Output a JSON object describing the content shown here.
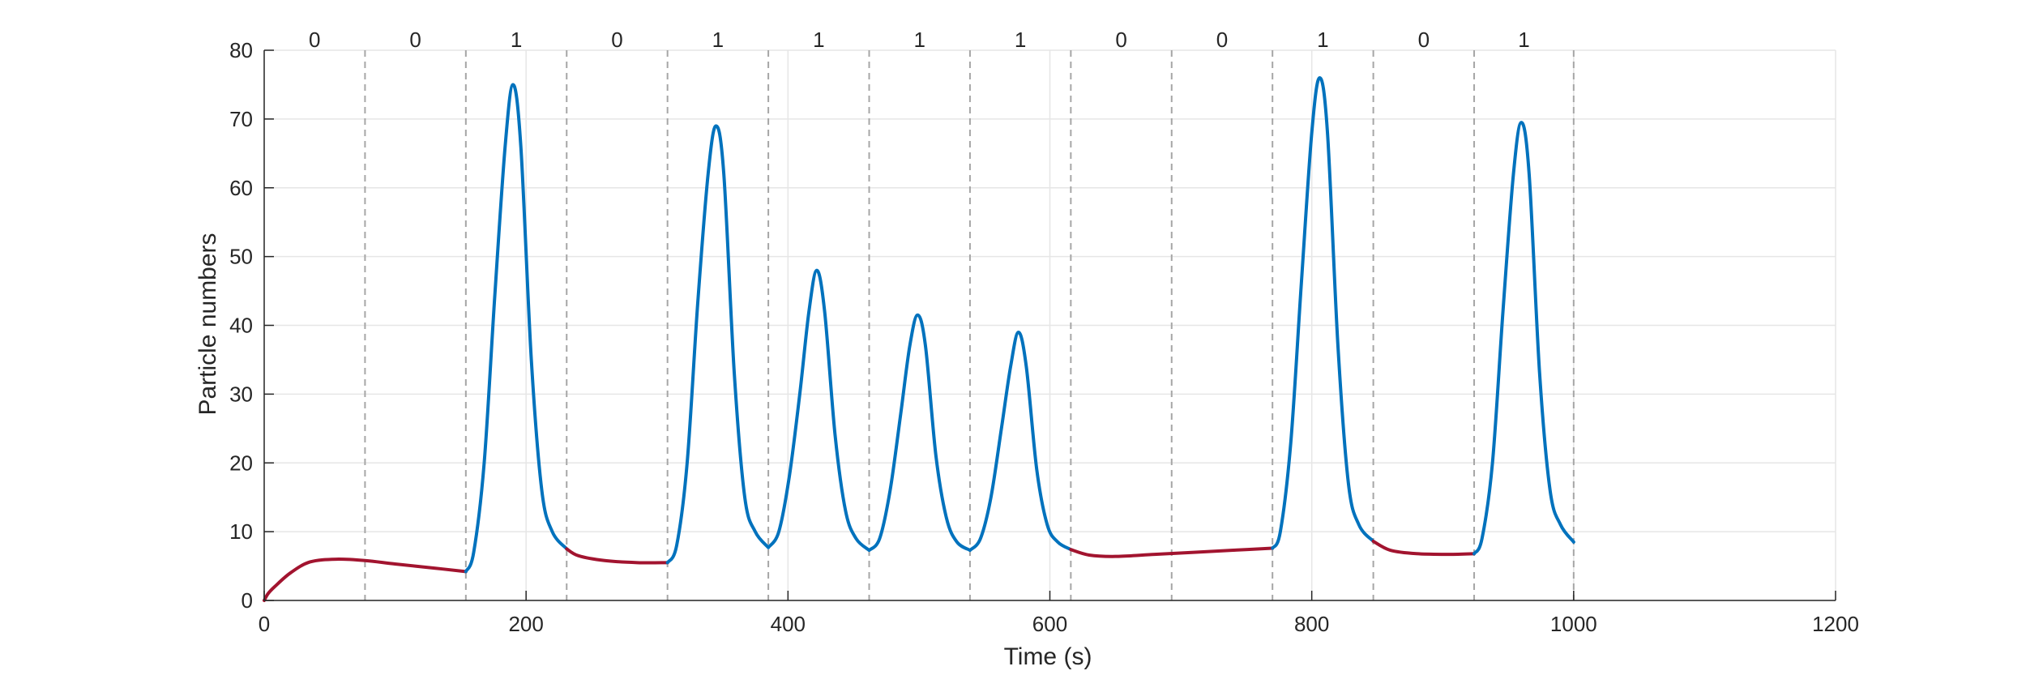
{
  "chart_data": {
    "type": "line",
    "title": "",
    "xlabel": "Time (s)",
    "ylabel": "Particle numbers",
    "xlim": [
      0,
      1200
    ],
    "ylim": [
      0,
      80
    ],
    "x_ticks": [
      0,
      200,
      400,
      600,
      800,
      1000,
      1200
    ],
    "y_ticks": [
      0,
      10,
      20,
      30,
      40,
      50,
      60,
      70,
      80
    ],
    "grid": true,
    "legend": "none",
    "colors": {
      "state_0": "#a2142f",
      "state_1": "#0072bd"
    },
    "state_boundaries": [
      77,
      154,
      231,
      308,
      385,
      462,
      539,
      616,
      693,
      770,
      847,
      924,
      1000
    ],
    "state_labels": [
      "0",
      "0",
      "1",
      "0",
      "1",
      "1",
      "1",
      "1",
      "0",
      "0",
      "1",
      "0",
      "1"
    ],
    "segments": [
      {
        "state": "0",
        "x": [
          0,
          3,
          8,
          20,
          35,
          55,
          77,
          100,
          130,
          154
        ],
        "y": [
          0,
          1,
          2,
          4,
          5.6,
          6,
          5.8,
          5.3,
          4.7,
          4.2
        ]
      },
      {
        "state": "1",
        "x": [
          154,
          160,
          168,
          176,
          184,
          190,
          196,
          204,
          212,
          220,
          231
        ],
        "y": [
          4.2,
          7,
          20,
          44,
          66,
          75,
          66,
          35,
          16,
          10,
          7.5
        ]
      },
      {
        "state": "0",
        "x": [
          231,
          240,
          260,
          285,
          308
        ],
        "y": [
          7.5,
          6.5,
          5.8,
          5.5,
          5.5
        ]
      },
      {
        "state": "1",
        "x": [
          308,
          315,
          323,
          331,
          339,
          345,
          351,
          359,
          367,
          375,
          385
        ],
        "y": [
          5.5,
          8,
          20,
          43,
          62,
          69,
          62,
          33,
          15,
          10,
          7.7
        ]
      },
      {
        "state": "1",
        "x": [
          385,
          393,
          401,
          409,
          416,
          422,
          428,
          436,
          444,
          452,
          462
        ],
        "y": [
          7.7,
          10,
          18,
          30,
          42,
          48,
          42,
          24,
          13,
          9,
          7.3
        ]
      },
      {
        "state": "1",
        "x": [
          462,
          470,
          478,
          486,
          493,
          499,
          505,
          513,
          521,
          529,
          539
        ],
        "y": [
          7.3,
          9,
          16,
          27,
          37,
          41.5,
          37,
          21,
          12,
          8.5,
          7.3
        ]
      },
      {
        "state": "1",
        "x": [
          539,
          547,
          555,
          563,
          570,
          576,
          582,
          590,
          598,
          606,
          616
        ],
        "y": [
          7.3,
          9,
          15,
          25,
          34,
          39,
          34,
          19,
          11,
          8.5,
          7.4
        ]
      },
      {
        "state": "0",
        "x": [
          616,
          630,
          650,
          680,
          710,
          740,
          770
        ],
        "y": [
          7.4,
          6.6,
          6.4,
          6.7,
          7,
          7.3,
          7.6
        ]
      },
      {
        "state": "1",
        "x": [
          770,
          776,
          784,
          792,
          800,
          806,
          812,
          820,
          828,
          836,
          847
        ],
        "y": [
          7.6,
          10,
          23,
          46,
          68,
          76,
          68,
          37,
          17,
          11,
          8.6
        ]
      },
      {
        "state": "0",
        "x": [
          847,
          860,
          880,
          905,
          924
        ],
        "y": [
          8.6,
          7.3,
          6.8,
          6.7,
          6.8
        ]
      },
      {
        "state": "1",
        "x": [
          924,
          930,
          938,
          946,
          954,
          960,
          966,
          974,
          982,
          990,
          1000
        ],
        "y": [
          6.8,
          9,
          20,
          42,
          62,
          69.5,
          62,
          33,
          16,
          11,
          8.5
        ]
      }
    ]
  }
}
